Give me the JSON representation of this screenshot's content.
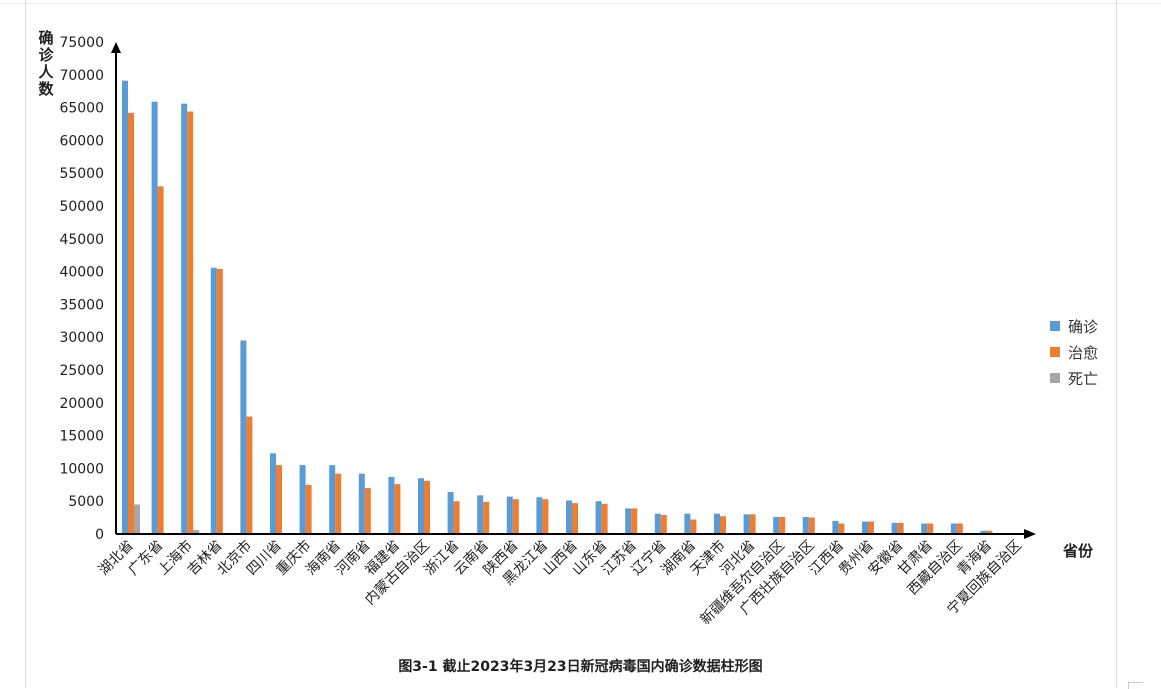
{
  "chart_data": {
    "type": "bar",
    "title": "图3-1  截止2023年3月23日新冠病毒国内确诊数据柱形图",
    "xlabel": "省份",
    "ylabel": "确诊人数",
    "ylim": [
      0,
      75000
    ],
    "yticks": [
      0,
      5000,
      10000,
      15000,
      20000,
      25000,
      30000,
      35000,
      40000,
      45000,
      50000,
      55000,
      60000,
      65000,
      70000,
      75000
    ],
    "grid": false,
    "legend_position": "right",
    "categories": [
      "湖北省",
      "广东省",
      "上海市",
      "吉林省",
      "北京市",
      "四川省",
      "重庆市",
      "海南省",
      "河南省",
      "福建省",
      "内蒙古自治区",
      "浙江省",
      "云南省",
      "陕西省",
      "黑龙江省",
      "山西省",
      "山东省",
      "江苏省",
      "辽宁省",
      "湖南省",
      "天津市",
      "河北省",
      "新疆维吾尔自治区",
      "广西壮族自治区",
      "江西省",
      "贵州省",
      "安徽省",
      "甘肃省",
      "西藏自治区",
      "青海省",
      "宁夏回族自治区"
    ],
    "series": [
      {
        "name": "确诊",
        "color": "#5b9bd5",
        "values": [
          69100,
          65900,
          65600,
          40600,
          29500,
          12300,
          10500,
          10500,
          9200,
          8700,
          8500,
          6400,
          5900,
          5700,
          5600,
          5100,
          5000,
          3900,
          3100,
          3100,
          3100,
          3000,
          2600,
          2600,
          2000,
          1900,
          1700,
          1600,
          1600,
          500,
          150
        ]
      },
      {
        "name": "治愈",
        "color": "#ed7d31",
        "values": [
          64200,
          53000,
          64400,
          40400,
          17900,
          10500,
          7500,
          9200,
          7000,
          7600,
          8100,
          5000,
          4900,
          5300,
          5300,
          4700,
          4600,
          3900,
          2900,
          2200,
          2700,
          3000,
          2600,
          2500,
          1600,
          1900,
          1700,
          1600,
          1600,
          500,
          150
        ]
      },
      {
        "name": "死亡",
        "color": "#a5a5a5",
        "values": [
          4500,
          0,
          600,
          0,
          0,
          0,
          0,
          0,
          0,
          0,
          0,
          0,
          0,
          0,
          0,
          0,
          0,
          0,
          0,
          0,
          0,
          0,
          0,
          0,
          0,
          0,
          0,
          0,
          0,
          0,
          0
        ]
      }
    ]
  }
}
